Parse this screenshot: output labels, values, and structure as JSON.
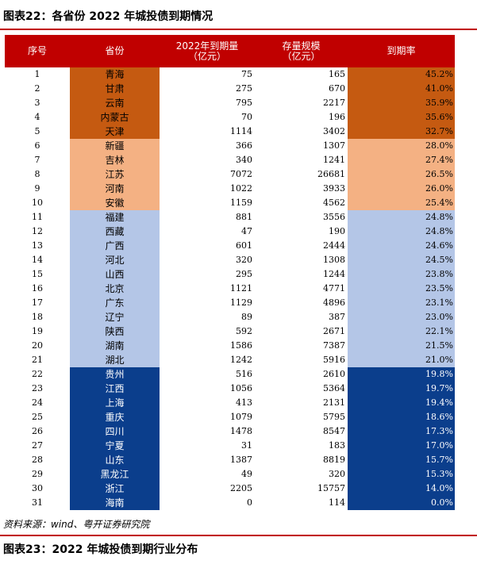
{
  "title_top": "图表22：各省份 2022 年城投债到期情况",
  "headers": {
    "seq": "序号",
    "province": "省份",
    "due_line1": "2022年到期量",
    "due_line2": "（亿元）",
    "stock_line1": "存量规模",
    "stock_line2": "（亿元）",
    "rate": "到期率"
  },
  "colors": {
    "header": "#c00000",
    "tier1": "#c55a11",
    "tier2": "#f4b183",
    "tier3": "#b4c6e7",
    "tier4": "#0b3e8c"
  },
  "rows": [
    {
      "no": "1",
      "prov": "青海",
      "due": "75",
      "stock": "165",
      "rate": "45.2%"
    },
    {
      "no": "2",
      "prov": "甘肃",
      "due": "275",
      "stock": "670",
      "rate": "41.0%"
    },
    {
      "no": "3",
      "prov": "云南",
      "due": "795",
      "stock": "2217",
      "rate": "35.9%"
    },
    {
      "no": "4",
      "prov": "内蒙古",
      "due": "70",
      "stock": "196",
      "rate": "35.6%"
    },
    {
      "no": "5",
      "prov": "天津",
      "due": "1114",
      "stock": "3402",
      "rate": "32.7%"
    },
    {
      "no": "6",
      "prov": "新疆",
      "due": "366",
      "stock": "1307",
      "rate": "28.0%"
    },
    {
      "no": "7",
      "prov": "吉林",
      "due": "340",
      "stock": "1241",
      "rate": "27.4%"
    },
    {
      "no": "8",
      "prov": "江苏",
      "due": "7072",
      "stock": "26681",
      "rate": "26.5%"
    },
    {
      "no": "9",
      "prov": "河南",
      "due": "1022",
      "stock": "3933",
      "rate": "26.0%"
    },
    {
      "no": "10",
      "prov": "安徽",
      "due": "1159",
      "stock": "4562",
      "rate": "25.4%"
    },
    {
      "no": "11",
      "prov": "福建",
      "due": "881",
      "stock": "3556",
      "rate": "24.8%"
    },
    {
      "no": "12",
      "prov": "西藏",
      "due": "47",
      "stock": "190",
      "rate": "24.8%"
    },
    {
      "no": "13",
      "prov": "广西",
      "due": "601",
      "stock": "2444",
      "rate": "24.6%"
    },
    {
      "no": "14",
      "prov": "河北",
      "due": "320",
      "stock": "1308",
      "rate": "24.5%"
    },
    {
      "no": "15",
      "prov": "山西",
      "due": "295",
      "stock": "1244",
      "rate": "23.8%"
    },
    {
      "no": "16",
      "prov": "北京",
      "due": "1121",
      "stock": "4771",
      "rate": "23.5%"
    },
    {
      "no": "17",
      "prov": "广东",
      "due": "1129",
      "stock": "4896",
      "rate": "23.1%"
    },
    {
      "no": "18",
      "prov": "辽宁",
      "due": "89",
      "stock": "387",
      "rate": "23.0%"
    },
    {
      "no": "19",
      "prov": "陕西",
      "due": "592",
      "stock": "2671",
      "rate": "22.1%"
    },
    {
      "no": "20",
      "prov": "湖南",
      "due": "1586",
      "stock": "7387",
      "rate": "21.5%"
    },
    {
      "no": "21",
      "prov": "湖北",
      "due": "1242",
      "stock": "5916",
      "rate": "21.0%"
    },
    {
      "no": "22",
      "prov": "贵州",
      "due": "516",
      "stock": "2610",
      "rate": "19.8%"
    },
    {
      "no": "23",
      "prov": "江西",
      "due": "1056",
      "stock": "5364",
      "rate": "19.7%"
    },
    {
      "no": "24",
      "prov": "上海",
      "due": "413",
      "stock": "2131",
      "rate": "19.4%"
    },
    {
      "no": "25",
      "prov": "重庆",
      "due": "1079",
      "stock": "5795",
      "rate": "18.6%"
    },
    {
      "no": "26",
      "prov": "四川",
      "due": "1478",
      "stock": "8547",
      "rate": "17.3%"
    },
    {
      "no": "27",
      "prov": "宁夏",
      "due": "31",
      "stock": "183",
      "rate": "17.0%"
    },
    {
      "no": "28",
      "prov": "山东",
      "due": "1387",
      "stock": "8819",
      "rate": "15.7%"
    },
    {
      "no": "29",
      "prov": "黑龙江",
      "due": "49",
      "stock": "320",
      "rate": "15.3%"
    },
    {
      "no": "30",
      "prov": "浙江",
      "due": "2205",
      "stock": "15757",
      "rate": "14.0%"
    },
    {
      "no": "31",
      "prov": "海南",
      "due": "0",
      "stock": "114",
      "rate": "0.0%"
    }
  ],
  "source": "资料来源：wind、粤开证券研究院",
  "title_bottom": "图表23：2022 年城投债到期行业分布"
}
